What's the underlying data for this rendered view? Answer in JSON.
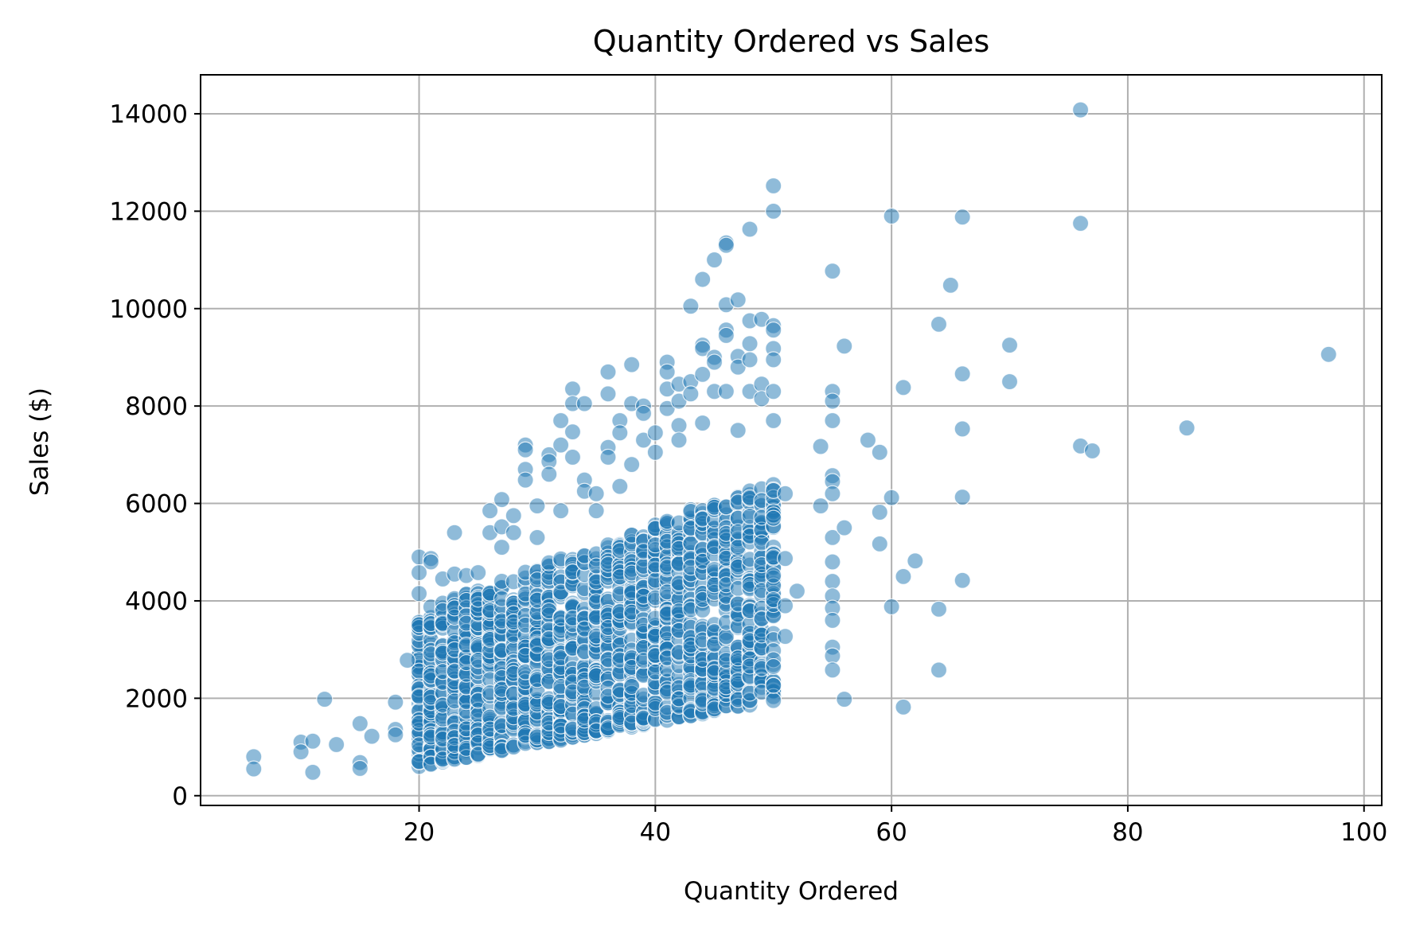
{
  "chart_data": {
    "type": "scatter",
    "title": "Quantity Ordered vs Sales",
    "xlabel": "Quantity Ordered",
    "ylabel": "Sales ($)",
    "xlim": [
      1.5,
      101.5
    ],
    "ylim": [
      -200,
      14800
    ],
    "xticks": [
      20,
      40,
      60,
      80,
      100
    ],
    "yticks": [
      0,
      2000,
      4000,
      6000,
      8000,
      10000,
      12000,
      14000
    ],
    "grid": true,
    "legend": "none",
    "point_color": "#1f77b4",
    "point_alpha": 0.5,
    "series": [
      {
        "points": [
          [
            6,
            800
          ],
          [
            6,
            550
          ],
          [
            10,
            1100
          ],
          [
            10,
            900
          ],
          [
            11,
            1120
          ],
          [
            11,
            480
          ],
          [
            12,
            1980
          ],
          [
            13,
            1050
          ],
          [
            15,
            1480
          ],
          [
            15,
            680
          ],
          [
            15,
            560
          ],
          [
            16,
            1220
          ],
          [
            18,
            1920
          ],
          [
            18,
            1360
          ],
          [
            18,
            1250
          ],
          [
            19,
            2780
          ],
          [
            20,
            4900
          ],
          [
            20,
            4580
          ],
          [
            20,
            4150
          ],
          [
            21,
            4870
          ],
          [
            21,
            4800
          ],
          [
            22,
            4450
          ],
          [
            23,
            5400
          ],
          [
            23,
            4550
          ],
          [
            24,
            4520
          ],
          [
            25,
            4580
          ],
          [
            26,
            5850
          ],
          [
            26,
            5400
          ],
          [
            27,
            6080
          ],
          [
            27,
            5520
          ],
          [
            27,
            5100
          ],
          [
            28,
            5750
          ],
          [
            28,
            5400
          ],
          [
            29,
            7200
          ],
          [
            29,
            7100
          ],
          [
            29,
            6700
          ],
          [
            29,
            6480
          ],
          [
            30,
            5950
          ],
          [
            30,
            5300
          ],
          [
            31,
            7000
          ],
          [
            31,
            6860
          ],
          [
            31,
            6600
          ],
          [
            32,
            7700
          ],
          [
            32,
            7200
          ],
          [
            32,
            5850
          ],
          [
            33,
            8350
          ],
          [
            33,
            8050
          ],
          [
            33,
            7470
          ],
          [
            33,
            6950
          ],
          [
            34,
            8050
          ],
          [
            34,
            6480
          ],
          [
            34,
            6250
          ],
          [
            35,
            6200
          ],
          [
            35,
            5850
          ],
          [
            36,
            8700
          ],
          [
            36,
            8250
          ],
          [
            36,
            7150
          ],
          [
            36,
            6950
          ],
          [
            37,
            7700
          ],
          [
            37,
            7450
          ],
          [
            37,
            6350
          ],
          [
            38,
            8850
          ],
          [
            38,
            8050
          ],
          [
            38,
            6800
          ],
          [
            39,
            8000
          ],
          [
            39,
            7850
          ],
          [
            39,
            7300
          ],
          [
            40,
            7450
          ],
          [
            40,
            7050
          ],
          [
            41,
            8900
          ],
          [
            41,
            8700
          ],
          [
            41,
            8350
          ],
          [
            41,
            7950
          ],
          [
            42,
            8450
          ],
          [
            42,
            8100
          ],
          [
            42,
            7600
          ],
          [
            42,
            7300
          ],
          [
            43,
            10050
          ],
          [
            43,
            8500
          ],
          [
            43,
            8250
          ],
          [
            44,
            10600
          ],
          [
            44,
            9250
          ],
          [
            44,
            9180
          ],
          [
            44,
            8650
          ],
          [
            44,
            7650
          ],
          [
            45,
            11000
          ],
          [
            45,
            9000
          ],
          [
            45,
            8900
          ],
          [
            45,
            8300
          ],
          [
            46,
            11350
          ],
          [
            46,
            11300
          ],
          [
            46,
            10080
          ],
          [
            46,
            9560
          ],
          [
            46,
            9450
          ],
          [
            46,
            8300
          ],
          [
            47,
            10180
          ],
          [
            47,
            9020
          ],
          [
            47,
            8800
          ],
          [
            47,
            7500
          ],
          [
            48,
            11630
          ],
          [
            48,
            9750
          ],
          [
            48,
            9280
          ],
          [
            48,
            8950
          ],
          [
            48,
            8300
          ],
          [
            49,
            9780
          ],
          [
            49,
            8450
          ],
          [
            49,
            8150
          ],
          [
            50,
            12520
          ],
          [
            50,
            12000
          ],
          [
            50,
            9650
          ],
          [
            50,
            9560
          ],
          [
            50,
            9180
          ],
          [
            50,
            8950
          ],
          [
            50,
            8300
          ],
          [
            50,
            7700
          ],
          [
            51,
            6200
          ],
          [
            51,
            4870
          ],
          [
            51,
            3900
          ],
          [
            51,
            3270
          ],
          [
            52,
            4200
          ],
          [
            54,
            7170
          ],
          [
            54,
            5950
          ],
          [
            55,
            10770
          ],
          [
            55,
            8300
          ],
          [
            55,
            8100
          ],
          [
            55,
            7700
          ],
          [
            55,
            6570
          ],
          [
            55,
            6450
          ],
          [
            55,
            6200
          ],
          [
            55,
            5300
          ],
          [
            55,
            4800
          ],
          [
            55,
            4400
          ],
          [
            55,
            4100
          ],
          [
            55,
            3850
          ],
          [
            55,
            3600
          ],
          [
            55,
            3050
          ],
          [
            55,
            2870
          ],
          [
            55,
            2580
          ],
          [
            56,
            9230
          ],
          [
            56,
            5500
          ],
          [
            56,
            1980
          ],
          [
            58,
            7300
          ],
          [
            59,
            7050
          ],
          [
            59,
            5820
          ],
          [
            59,
            5170
          ],
          [
            60,
            11900
          ],
          [
            60,
            6120
          ],
          [
            60,
            3880
          ],
          [
            61,
            8380
          ],
          [
            61,
            4500
          ],
          [
            61,
            1820
          ],
          [
            62,
            4820
          ],
          [
            64,
            9680
          ],
          [
            64,
            3830
          ],
          [
            64,
            2580
          ],
          [
            65,
            10480
          ],
          [
            66,
            11880
          ],
          [
            66,
            8660
          ],
          [
            66,
            7530
          ],
          [
            66,
            6130
          ],
          [
            66,
            4420
          ],
          [
            70,
            9250
          ],
          [
            70,
            8500
          ],
          [
            76,
            14080
          ],
          [
            76,
            11750
          ],
          [
            76,
            7180
          ],
          [
            77,
            7080
          ],
          [
            85,
            7550
          ],
          [
            97,
            9060
          ]
        ]
      }
    ]
  }
}
